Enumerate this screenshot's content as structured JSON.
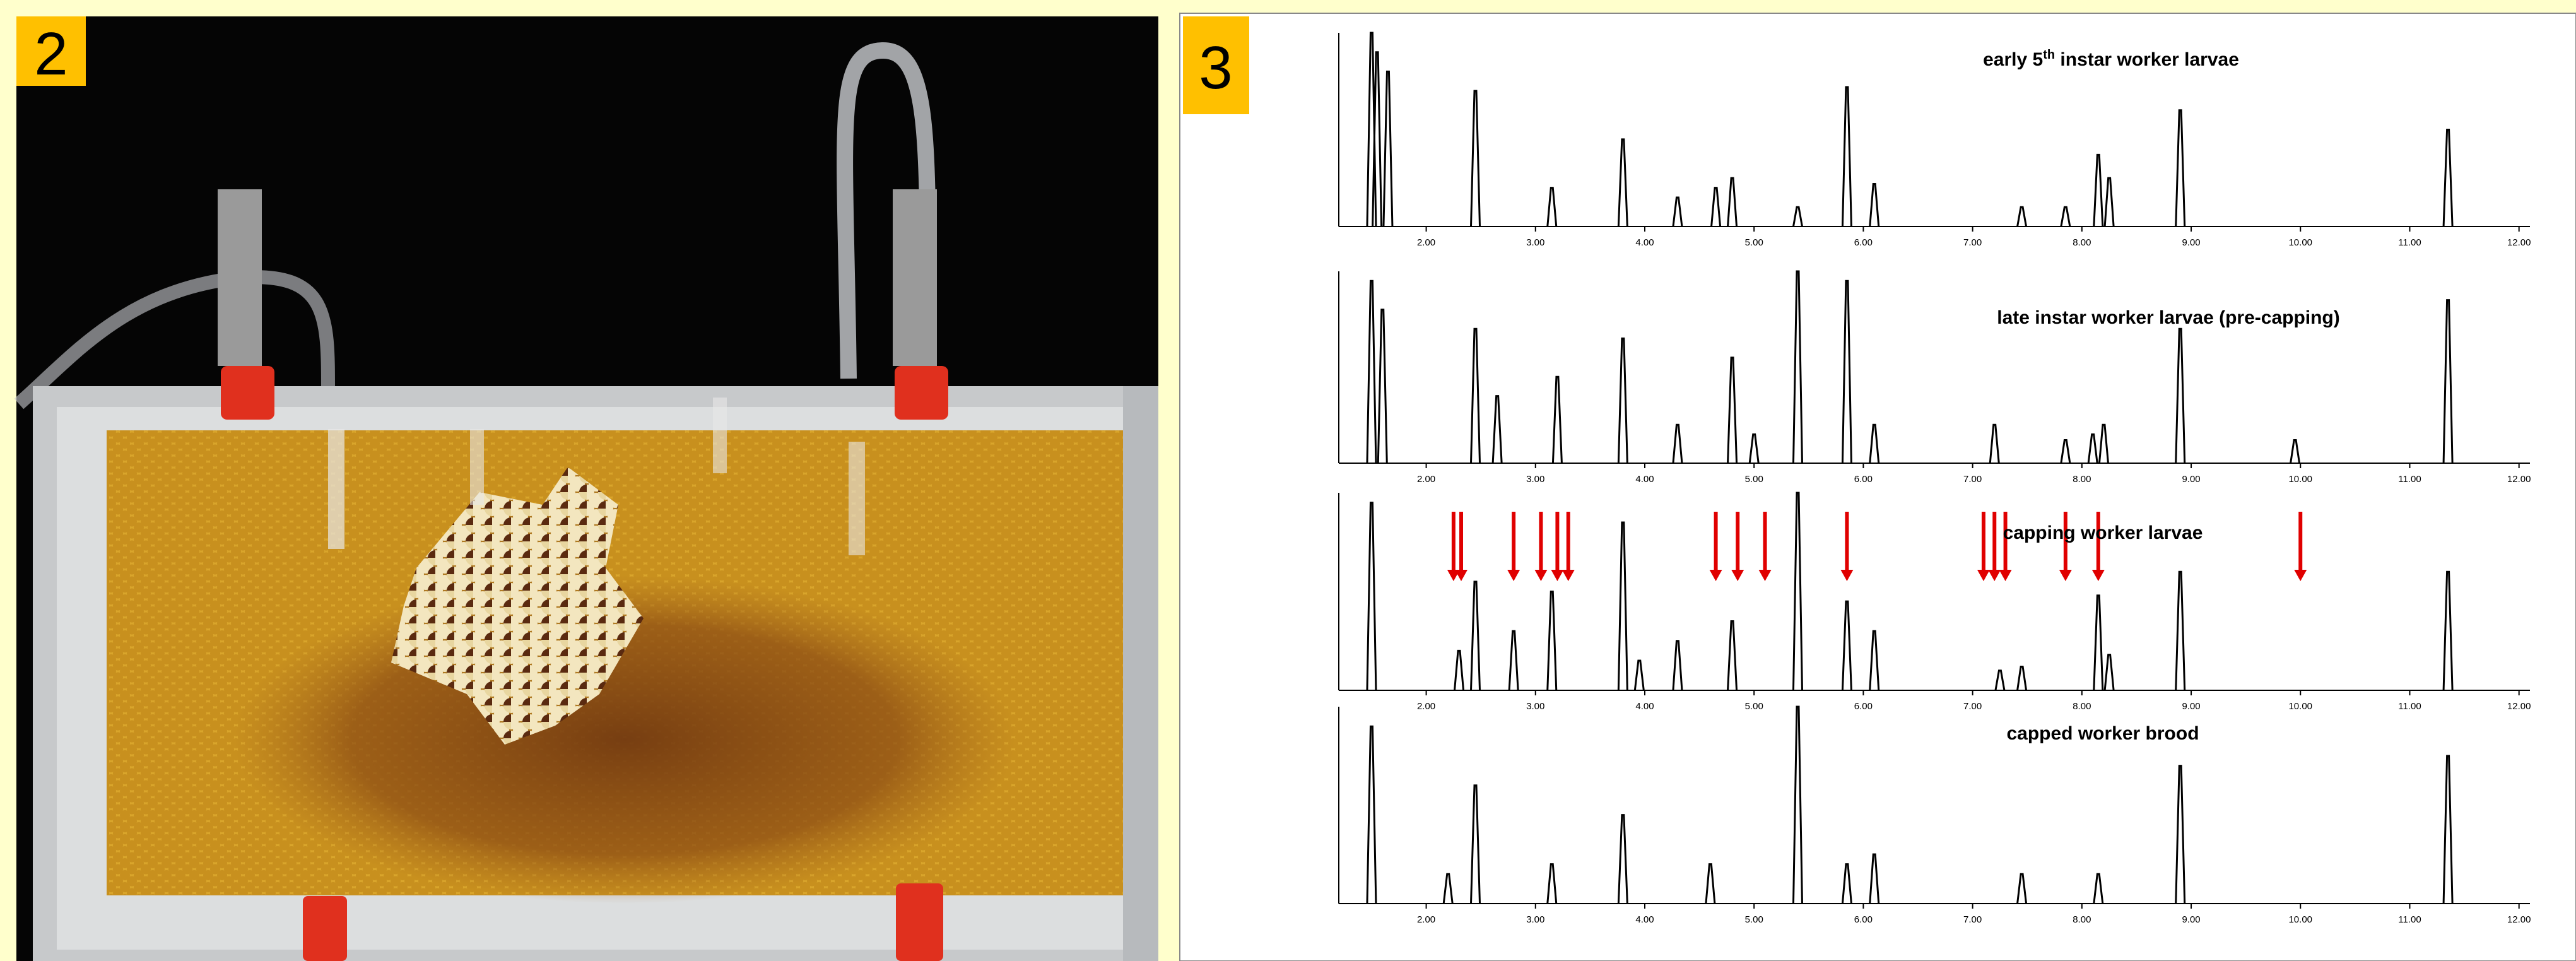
{
  "panels": [
    {
      "label": "2"
    },
    {
      "label": "3"
    }
  ],
  "chart_data": [
    {
      "type": "spike",
      "title": [
        "early 5",
        "th",
        " instar worker larvae"
      ],
      "color": "#000000",
      "x": [
        1.5,
        1.55,
        1.65,
        2.45,
        3.15,
        3.8,
        4.3,
        4.65,
        4.8,
        5.4,
        5.85,
        6.1,
        7.45,
        7.85,
        8.15,
        8.25,
        8.9,
        11.35
      ],
      "values": [
        100,
        90,
        80,
        70,
        20,
        45,
        15,
        20,
        25,
        10,
        72,
        22,
        10,
        10,
        37,
        25,
        60,
        50
      ],
      "xlim": [
        1.2,
        12.1
      ],
      "ylim": [
        0,
        100
      ],
      "xticks": [
        {
          "value": 2,
          "label": "2.00"
        },
        {
          "value": 3,
          "label": "3.00"
        },
        {
          "value": 4,
          "label": "4.00"
        },
        {
          "value": 5,
          "label": "5.00"
        },
        {
          "value": 6,
          "label": "6.00"
        },
        {
          "value": 7,
          "label": "7.00"
        },
        {
          "value": 8,
          "label": "8.00"
        },
        {
          "value": 9,
          "label": "9.00"
        },
        {
          "value": 10,
          "label": "10.00"
        },
        {
          "value": 11,
          "label": "11.00"
        },
        {
          "value": 12,
          "label": "12.00"
        }
      ]
    },
    {
      "type": "spike",
      "title": "late instar worker larvae (pre-capping)",
      "color": "#000000",
      "x": [
        1.5,
        1.6,
        2.45,
        2.65,
        3.2,
        3.8,
        4.3,
        4.8,
        5.0,
        5.4,
        5.85,
        6.1,
        7.2,
        7.85,
        8.1,
        8.2,
        8.9,
        9.95,
        11.35
      ],
      "values": [
        95,
        80,
        70,
        35,
        45,
        65,
        20,
        55,
        15,
        100,
        95,
        20,
        20,
        12,
        15,
        20,
        70,
        12,
        85
      ],
      "xlim": [
        1.2,
        12.1
      ],
      "ylim": [
        0,
        100
      ],
      "xticks": [
        {
          "value": 2,
          "label": "2.00"
        },
        {
          "value": 3,
          "label": "3.00"
        },
        {
          "value": 4,
          "label": "4.00"
        },
        {
          "value": 5,
          "label": "5.00"
        },
        {
          "value": 6,
          "label": "6.00"
        },
        {
          "value": 7,
          "label": "7.00"
        },
        {
          "value": 8,
          "label": "8.00"
        },
        {
          "value": 9,
          "label": "9.00"
        },
        {
          "value": 10,
          "label": "10.00"
        },
        {
          "value": 11,
          "label": "11.00"
        },
        {
          "value": 12,
          "label": "12.00"
        }
      ]
    },
    {
      "type": "spike",
      "title": "capping worker larvae",
      "color": "#000000",
      "x": [
        1.5,
        2.3,
        2.45,
        2.8,
        3.15,
        3.8,
        3.95,
        4.3,
        4.8,
        5.4,
        5.85,
        6.1,
        7.25,
        7.45,
        8.15,
        8.25,
        8.9,
        11.35
      ],
      "values": [
        95,
        20,
        55,
        30,
        50,
        85,
        15,
        25,
        35,
        100,
        45,
        30,
        10,
        12,
        48,
        18,
        60,
        60
      ],
      "arrows": [
        2.25,
        2.32,
        2.8,
        3.05,
        3.2,
        3.3,
        4.65,
        4.85,
        5.1,
        5.85,
        7.1,
        7.2,
        7.3,
        7.85,
        8.15,
        10.0
      ],
      "arrow_color": "#e00000",
      "xlim": [
        1.2,
        12.1
      ],
      "ylim": [
        0,
        100
      ],
      "xticks": [
        {
          "value": 2,
          "label": "2.00"
        },
        {
          "value": 3,
          "label": "3.00"
        },
        {
          "value": 4,
          "label": "4.00"
        },
        {
          "value": 5,
          "label": "5.00"
        },
        {
          "value": 6,
          "label": "6.00"
        },
        {
          "value": 7,
          "label": "7.00"
        },
        {
          "value": 8,
          "label": "8.00"
        },
        {
          "value": 9,
          "label": "9.00"
        },
        {
          "value": 10,
          "label": "10.00"
        },
        {
          "value": 11,
          "label": "11.00"
        },
        {
          "value": 12,
          "label": "12.00"
        }
      ]
    },
    {
      "type": "spike",
      "title": "capped worker brood",
      "color": "#000000",
      "x": [
        1.5,
        2.2,
        2.45,
        3.15,
        3.8,
        4.6,
        5.4,
        5.85,
        6.1,
        7.45,
        8.15,
        8.9,
        11.35
      ],
      "values": [
        90,
        15,
        60,
        20,
        45,
        20,
        100,
        20,
        25,
        15,
        15,
        70,
        75
      ],
      "xlim": [
        1.2,
        12.1
      ],
      "ylim": [
        0,
        100
      ],
      "xticks": [
        {
          "value": 2,
          "label": "2.00"
        },
        {
          "value": 3,
          "label": "3.00"
        },
        {
          "value": 4,
          "label": "4.00"
        },
        {
          "value": 5,
          "label": "5.00"
        },
        {
          "value": 6,
          "label": "6.00"
        },
        {
          "value": 7,
          "label": "7.00"
        },
        {
          "value": 8,
          "label": "8.00"
        },
        {
          "value": 9,
          "label": "9.00"
        },
        {
          "value": 10,
          "label": "10.00"
        },
        {
          "value": 11,
          "label": "11.00"
        },
        {
          "value": 12,
          "label": "12.00"
        }
      ]
    }
  ]
}
